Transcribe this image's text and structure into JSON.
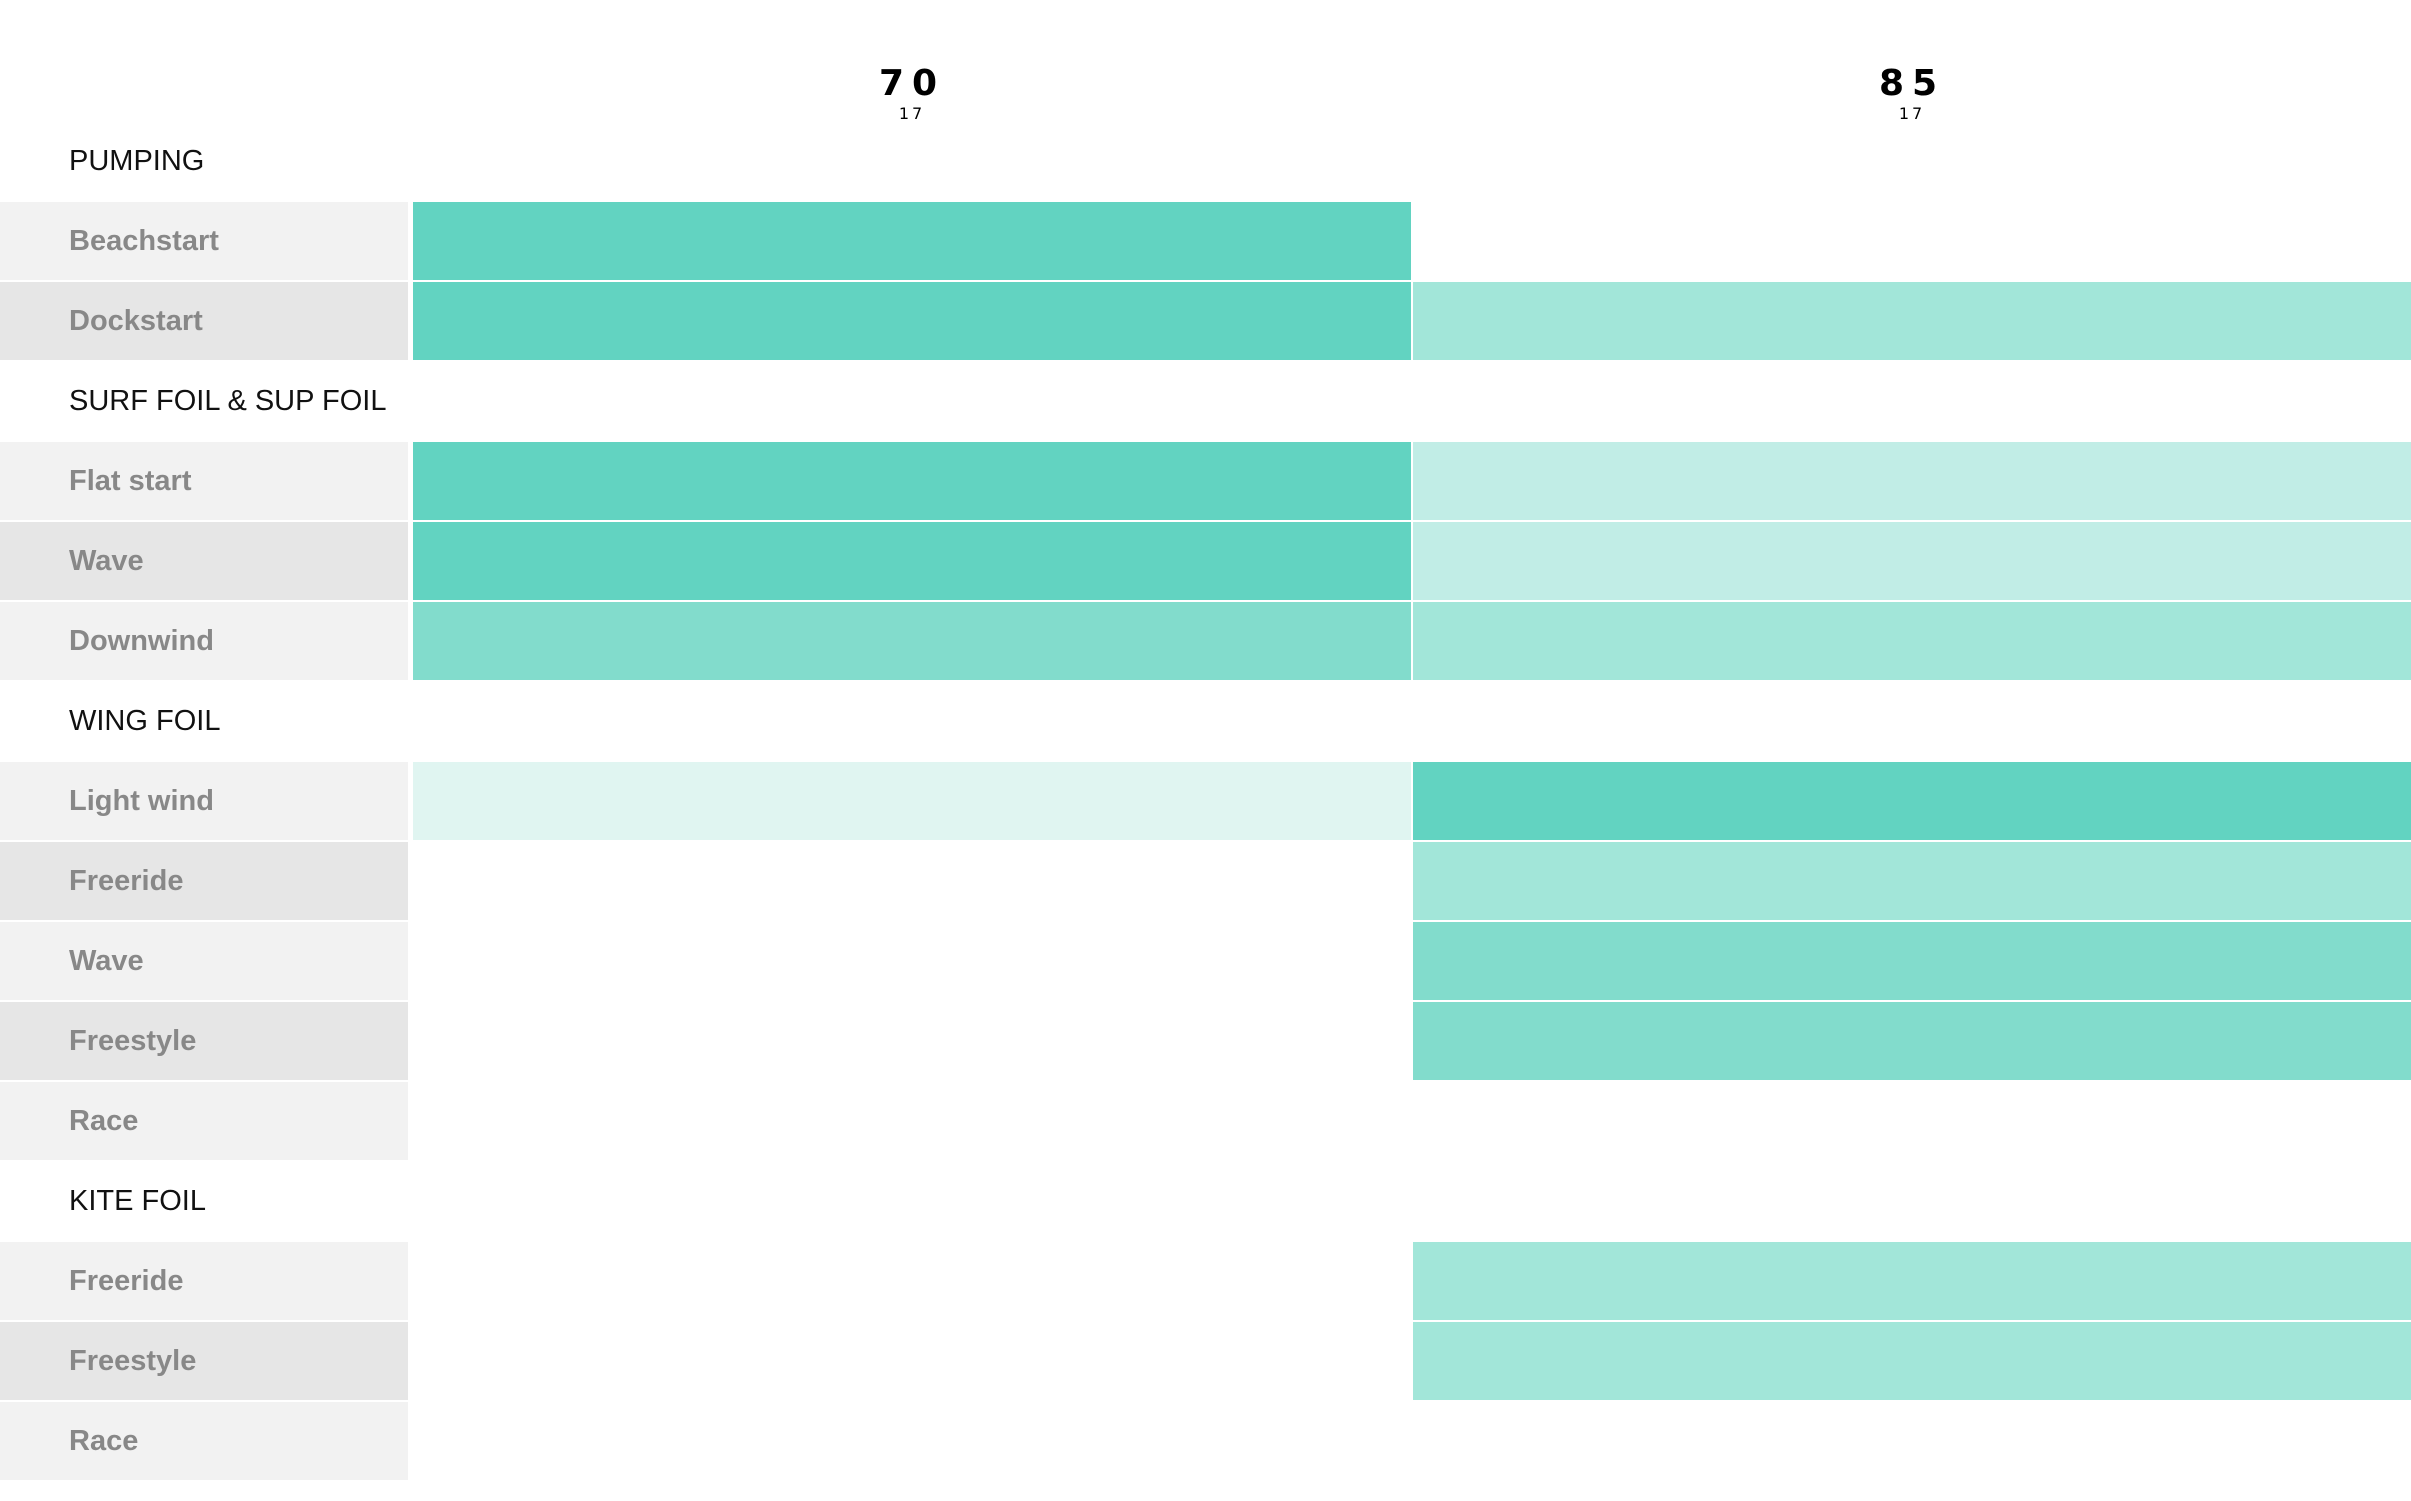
{
  "columns": [
    {
      "number": "70",
      "sub": "17"
    },
    {
      "number": "85",
      "sub": "17"
    }
  ],
  "colors": {
    "level_0": "#ffffff",
    "level_1": "#e0f5f1",
    "level_2": "#c1ede6",
    "level_3": "#a2e6d9",
    "level_4": "#82dccc",
    "level_5": "#62d3c1"
  },
  "rows": [
    {
      "kind": "section",
      "label": "PUMPING"
    },
    {
      "kind": "item",
      "label": "Beachstart",
      "levels": [
        5,
        0
      ]
    },
    {
      "kind": "item",
      "label": "Dockstart",
      "levels": [
        5,
        3
      ]
    },
    {
      "kind": "section",
      "label": "SURF FOIL & SUP FOIL"
    },
    {
      "kind": "item",
      "label": "Flat start",
      "levels": [
        5,
        2
      ]
    },
    {
      "kind": "item",
      "label": "Wave",
      "levels": [
        5,
        2
      ]
    },
    {
      "kind": "item",
      "label": "Downwind",
      "levels": [
        4,
        3
      ]
    },
    {
      "kind": "section",
      "label": "WING FOIL"
    },
    {
      "kind": "item",
      "label": "Light wind",
      "levels": [
        1,
        5
      ]
    },
    {
      "kind": "item",
      "label": "Freeride",
      "levels": [
        0,
        3
      ]
    },
    {
      "kind": "item",
      "label": "Wave",
      "levels": [
        0,
        4
      ]
    },
    {
      "kind": "item",
      "label": "Freestyle",
      "levels": [
        0,
        4
      ]
    },
    {
      "kind": "item",
      "label": "Race",
      "levels": [
        0,
        0
      ]
    },
    {
      "kind": "section",
      "label": "KITE FOIL"
    },
    {
      "kind": "item",
      "label": "Freeride",
      "levels": [
        0,
        3
      ]
    },
    {
      "kind": "item",
      "label": "Freestyle",
      "levels": [
        0,
        3
      ]
    },
    {
      "kind": "item",
      "label": "Race",
      "levels": [
        0,
        0
      ]
    }
  ]
}
